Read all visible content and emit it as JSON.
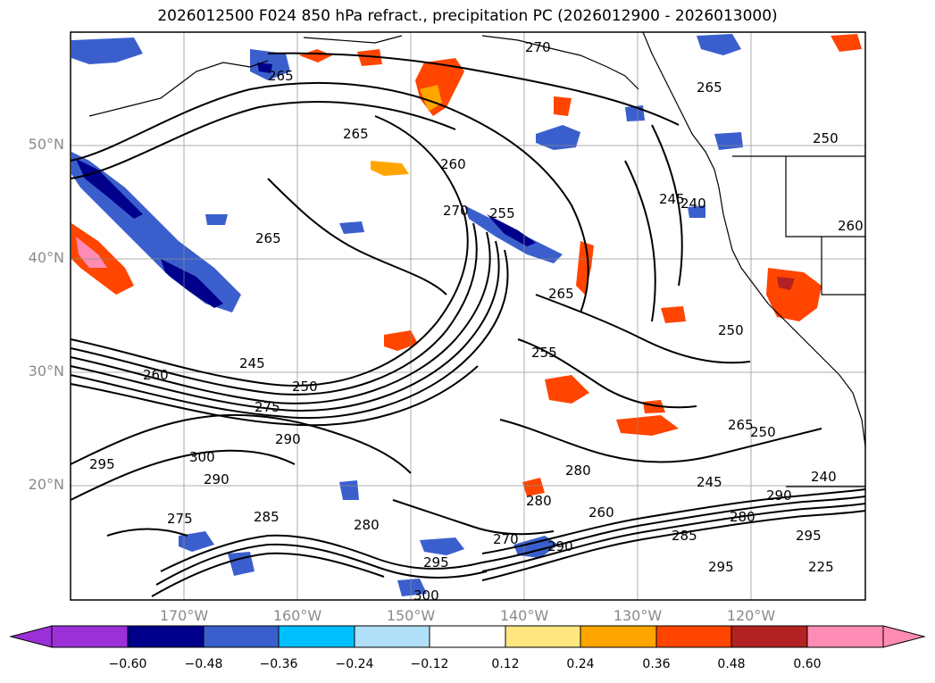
{
  "title": "2026012500 F024 850 hPa refract., precipitation PC (2026012900 - 2026013000)",
  "latitude_labels": [
    "50°N",
    "40°N",
    "30°N",
    "20°N"
  ],
  "longitude_labels": [
    "170°W",
    "160°W",
    "150°W",
    "140°W",
    "130°W",
    "120°W"
  ],
  "colorbar": {
    "ticks": [
      "−0.60",
      "−0.48",
      "−0.36",
      "−0.24",
      "−0.12",
      "0.12",
      "0.24",
      "0.36",
      "0.48",
      "0.60"
    ],
    "colors": [
      "#9b30d9",
      "#00008b",
      "#3a5fcd",
      "#00bfff",
      "#b0e0f8",
      "#ffffff",
      "#ffe680",
      "#ffa500",
      "#ff4500",
      "#b22222",
      "#ff8cb4"
    ]
  },
  "contour_labels": [
    "265",
    "270",
    "265",
    "260",
    "265",
    "270",
    "255",
    "265",
    "255",
    "245",
    "240",
    "250",
    "260",
    "265",
    "250",
    "260",
    "245",
    "250",
    "275",
    "290",
    "300",
    "295",
    "290",
    "275",
    "285",
    "280",
    "280",
    "270",
    "290",
    "295",
    "300",
    "280",
    "260",
    "280",
    "285",
    "295",
    "295",
    "290",
    "240",
    "250",
    "265",
    "245",
    "225"
  ]
}
